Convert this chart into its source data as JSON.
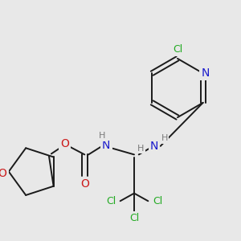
{
  "bg_color": "#e8e8e8",
  "bond_color": "#1a1a1a",
  "atom_colors": {
    "N": "#1a1acc",
    "O": "#cc1a1a",
    "Cl": "#22aa22",
    "H": "#7a7a7a"
  },
  "bond_width": 1.4,
  "figsize": [
    3.0,
    3.0
  ],
  "dpi": 100
}
